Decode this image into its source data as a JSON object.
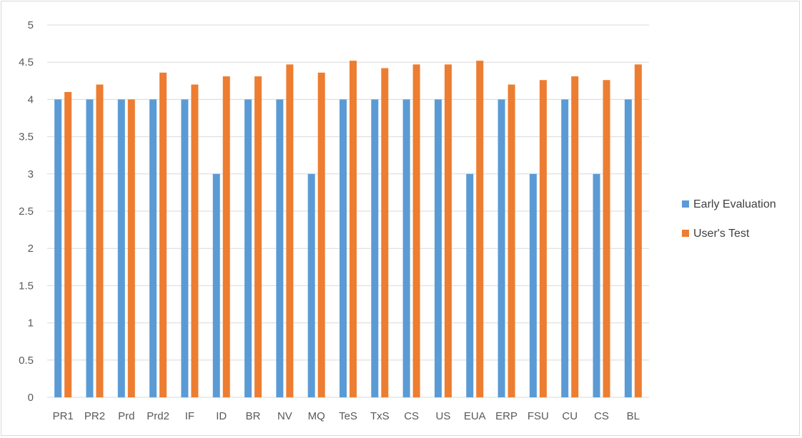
{
  "chart_data": {
    "type": "bar",
    "title": "",
    "xlabel": "",
    "ylabel": "",
    "ylim": [
      0,
      5
    ],
    "yticks": [
      0,
      0.5,
      1,
      1.5,
      2,
      2.5,
      3,
      3.5,
      4,
      4.5,
      5
    ],
    "grid": true,
    "legend_position": "right",
    "categories": [
      "PR1",
      "PR2",
      "Prd",
      "Prd2",
      "IF",
      "ID",
      "BR",
      "NV",
      "MQ",
      "TeS",
      "TxS",
      "CS",
      "US",
      "EUA",
      "ERP",
      "FSU",
      "CU",
      "CS",
      "BL"
    ],
    "series": [
      {
        "name": "Early Evaluation",
        "color": "#5b9bd5",
        "values": [
          4,
          4,
          4,
          4,
          4,
          3,
          4,
          4,
          3,
          4,
          4,
          4,
          4,
          3,
          4,
          3,
          4,
          3,
          4
        ]
      },
      {
        "name": "User's Test",
        "color": "#ed7d31",
        "values": [
          4.1,
          4.2,
          4,
          4.36,
          4.2,
          4.31,
          4.31,
          4.47,
          4.36,
          4.52,
          4.42,
          4.47,
          4.47,
          4.52,
          4.2,
          4.26,
          4.31,
          4.26,
          4.47
        ]
      }
    ]
  }
}
